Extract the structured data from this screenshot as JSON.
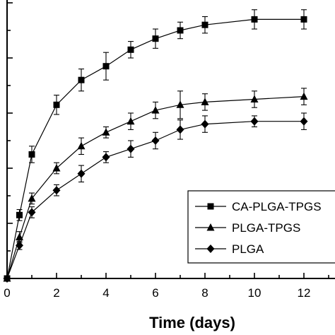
{
  "chart_data": {
    "type": "line",
    "title": "",
    "xlabel": "Time (days)",
    "ylabel": "",
    "xlim": [
      0,
      13.8
    ],
    "ylim": [
      0,
      100
    ],
    "xticks": [
      0,
      2,
      4,
      6,
      8,
      10,
      12
    ],
    "grid": false,
    "legend_position": "bottom-right",
    "series": [
      {
        "name": "CA-PLGA-TPGS",
        "marker": "square",
        "x": [
          0,
          0.5,
          1,
          2,
          3,
          4,
          5,
          6,
          7,
          8,
          10,
          12
        ],
        "y": [
          0,
          23,
          45,
          63,
          72,
          77,
          83,
          87,
          90,
          92,
          94,
          94
        ],
        "err": [
          0,
          2,
          3,
          3.5,
          4,
          5,
          3,
          3.5,
          3,
          3,
          3.5,
          3.5
        ]
      },
      {
        "name": "PLGA-TPGS",
        "marker": "triangle",
        "x": [
          0,
          0.5,
          1,
          2,
          3,
          4,
          5,
          6,
          7,
          8,
          10,
          12
        ],
        "y": [
          0,
          15,
          29,
          40,
          48,
          53,
          57,
          61,
          63,
          64,
          65,
          66
        ],
        "err": [
          0,
          2,
          2,
          2,
          3,
          2,
          3,
          3,
          5,
          3,
          3,
          3
        ]
      },
      {
        "name": "PLGA",
        "marker": "diamond",
        "x": [
          0,
          0.5,
          1,
          2,
          3,
          4,
          5,
          6,
          7,
          8,
          10,
          12
        ],
        "y": [
          0,
          12,
          24,
          32,
          38,
          44,
          47,
          50,
          54,
          56,
          57,
          57
        ],
        "err": [
          0,
          1.5,
          2,
          2,
          3,
          2,
          3,
          3,
          3.5,
          3,
          2,
          3
        ]
      }
    ]
  }
}
